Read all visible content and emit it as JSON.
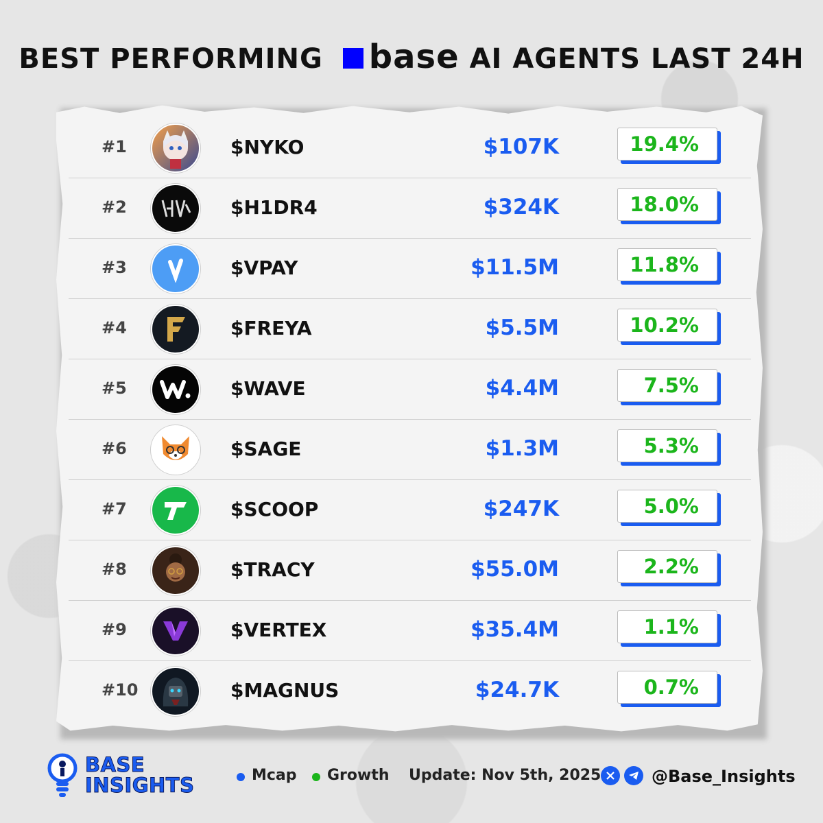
{
  "header": {
    "title_prefix": "BEST PERFORMING",
    "brand_word": "base",
    "title_suffix": "AI AGENTS LAST 24H",
    "brand_color": "#0000ff"
  },
  "accent_colors": {
    "mcap": "#1a5cf0",
    "growth": "#1bb51b",
    "box_shadow": "#1a5cf0"
  },
  "rows": [
    {
      "rank": "#1",
      "ticker": "$NYKO",
      "mcap": "$107K",
      "growth": "19.4%",
      "icon": "anime-girl-avatar-icon"
    },
    {
      "rank": "#2",
      "ticker": "$H1DR4",
      "mcap": "$324K",
      "growth": "18.0%",
      "icon": "h1dr4-logo-icon"
    },
    {
      "rank": "#3",
      "ticker": "$VPAY",
      "mcap": "$11.5M",
      "growth": "11.8%",
      "icon": "vpay-logo-icon"
    },
    {
      "rank": "#4",
      "ticker": "$FREYA",
      "mcap": "$5.5M",
      "growth": "10.2%",
      "icon": "freya-logo-icon"
    },
    {
      "rank": "#5",
      "ticker": "$WAVE",
      "mcap": "$4.4M",
      "growth": "7.5%",
      "icon": "wave-logo-icon"
    },
    {
      "rank": "#6",
      "ticker": "$SAGE",
      "mcap": "$1.3M",
      "growth": "5.3%",
      "icon": "fox-avatar-icon"
    },
    {
      "rank": "#7",
      "ticker": "$SCOOP",
      "mcap": "$247K",
      "growth": "5.0%",
      "icon": "scoop-logo-icon"
    },
    {
      "rank": "#8",
      "ticker": "$TRACY",
      "mcap": "$55.0M",
      "growth": "2.2%",
      "icon": "woman-avatar-icon"
    },
    {
      "rank": "#9",
      "ticker": "$VERTEX",
      "mcap": "$35.4M",
      "growth": "1.1%",
      "icon": "vertex-logo-icon"
    },
    {
      "rank": "#10",
      "ticker": "$MAGNUS",
      "mcap": "$24.7K",
      "growth": "0.7%",
      "icon": "robot-avatar-icon"
    }
  ],
  "footer": {
    "brand_line1": "BASE",
    "brand_line2": "INSIGHTS",
    "legend_mcap": "Mcap",
    "legend_growth": "Growth",
    "update": "Update: Nov 5th, 2025",
    "handle": "@Base_Insights"
  }
}
